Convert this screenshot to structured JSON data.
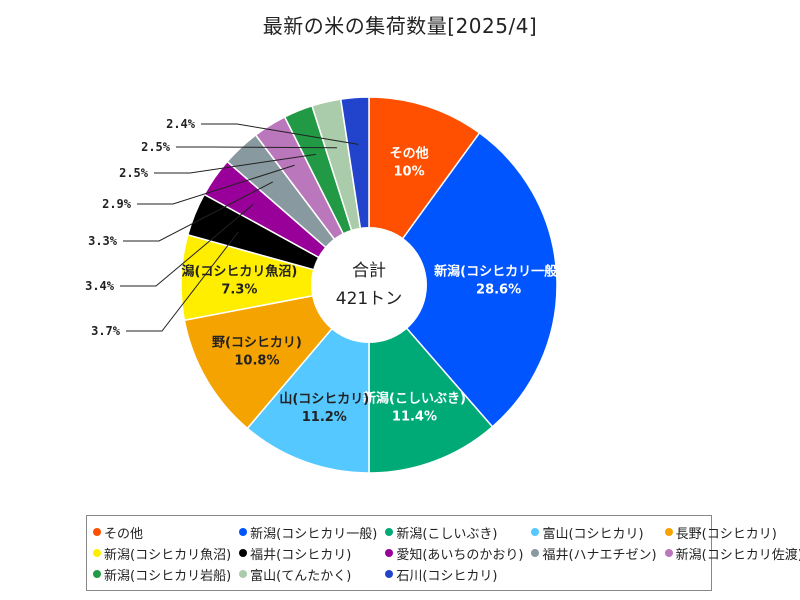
{
  "chart_data": {
    "type": "pie",
    "title": "最新の米の集荷数量[2025/4]",
    "center_label": [
      "合計",
      "421トン"
    ],
    "slices": [
      {
        "name": "その他",
        "label": "その他",
        "value": 10,
        "pct_label": "10%",
        "color": "#ff4f00"
      },
      {
        "name": "新潟(コシヒカリ一般)",
        "label": "新潟(コシヒカリ一般)",
        "value": 28.6,
        "pct_label": "28.6%",
        "color": "#0055ff"
      },
      {
        "name": "新潟(こしいぶき)",
        "label": "新潟(こしいぶき)",
        "value": 11.4,
        "pct_label": "11.4%",
        "color": "#00aa77"
      },
      {
        "name": "富山(コシヒカリ)",
        "label": "山(コシヒカリ)",
        "value": 11.2,
        "pct_label": "11.2%",
        "color": "#55c8ff"
      },
      {
        "name": "長野(コシヒカリ)",
        "label": "野(コシヒカリ)",
        "value": 10.8,
        "pct_label": "10.8%",
        "color": "#f5a300"
      },
      {
        "name": "新潟(コシヒカリ魚沼)",
        "label": "潟(コシヒカリ魚沼)",
        "value": 7.3,
        "pct_label": "7.3%",
        "color": "#ffee00"
      },
      {
        "name": "福井(コシヒカリ)",
        "label": "",
        "value": 3.7,
        "pct_label": "3.7%",
        "color": "#000000"
      },
      {
        "name": "愛知(あいちのかおり)",
        "label": "",
        "value": 3.4,
        "pct_label": "3.4%",
        "color": "#990099"
      },
      {
        "name": "福井(ハナエチゼン)",
        "label": "",
        "value": 3.3,
        "pct_label": "3.3%",
        "color": "#8899a0"
      },
      {
        "name": "新潟(コシヒカリ佐渡)",
        "label": "",
        "value": 2.9,
        "pct_label": "2.9%",
        "color": "#bb77bb"
      },
      {
        "name": "新潟(コシヒカリ岩船)",
        "label": "",
        "value": 2.5,
        "pct_label": "2.5%",
        "color": "#229944"
      },
      {
        "name": "富山(てんたかく)",
        "label": "",
        "value": 2.5,
        "pct_label": "2.5%",
        "color": "#aaccaa"
      },
      {
        "name": "石川(コシヒカリ)",
        "label": "",
        "value": 2.4,
        "pct_label": "2.4%",
        "color": "#2244cc"
      }
    ],
    "legend_position": "bottom"
  }
}
